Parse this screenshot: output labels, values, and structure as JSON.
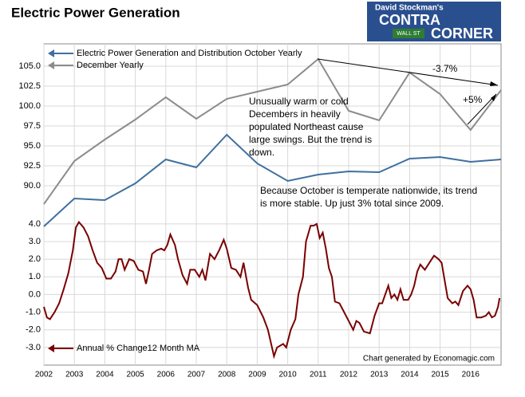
{
  "chart_data": {
    "type": "line",
    "title": "Electric Power Generation",
    "logo": [
      "David Stockman's",
      "CONTRA",
      "CORNER",
      "WALL ST"
    ],
    "xlim": [
      2002,
      2017
    ],
    "xticks": [
      2002,
      2003,
      2004,
      2005,
      2006,
      2007,
      2008,
      2009,
      2010,
      2011,
      2012,
      2013,
      2014,
      2015,
      2016
    ],
    "ylim": [
      67.5,
      107.8
    ],
    "yticks": [
      {
        "value": 90,
        "label": "90.0"
      },
      92.5,
      {
        "value": 95,
        "label": "95.0"
      },
      97.5,
      {
        "value": 100,
        "label": "100.0"
      },
      102.5,
      {
        "value": 105,
        "label": "105.0"
      }
    ],
    "y2lim": [
      -4,
      14.2
    ],
    "y2ticks": [
      {
        "value": -3,
        "label": "-3.0"
      },
      {
        "value": -2,
        "label": "-2.0"
      },
      {
        "value": -1,
        "label": "-1.0"
      },
      {
        "value": 0,
        "label": "0.0"
      },
      {
        "value": 1,
        "label": "1.0"
      },
      {
        "value": 2,
        "label": "2.0"
      },
      {
        "value": 3,
        "label": "3.0"
      },
      {
        "value": 4,
        "label": "4.0"
      }
    ],
    "grid": true,
    "series": [
      {
        "name": "Electric Power Generation and Distribution October Yearly",
        "color": "#3f6fa0",
        "x": [
          2002,
          2003,
          2004,
          2005,
          2006,
          2007,
          2008,
          2009,
          2010,
          2011,
          2012,
          2013,
          2014,
          2015,
          2016,
          2017
        ],
        "values": [
          84.9,
          88.4,
          88.2,
          90.3,
          93.3,
          92.3,
          96.4,
          92.8,
          90.6,
          91.4,
          91.8,
          91.7,
          93.4,
          93.6,
          93.0,
          93.3
        ]
      },
      {
        "name": "December Yearly",
        "color": "#8c8c8c",
        "x": [
          2002,
          2003,
          2004,
          2005,
          2006,
          2007,
          2008,
          2009,
          2010,
          2011,
          2012,
          2013,
          2014,
          2015,
          2016,
          2017
        ],
        "values": [
          87.7,
          93.1,
          95.8,
          98.3,
          101.1,
          98.4,
          100.9,
          101.8,
          102.7,
          105.9,
          99.4,
          98.2,
          104.2,
          101.5,
          97.0,
          102.0
        ]
      },
      {
        "name": "Annual % Change12 Month MA",
        "color": "#7a0000",
        "axis": "y2",
        "x": [
          2002.0,
          2002.1,
          2002.2,
          2002.35,
          2002.5,
          2002.65,
          2002.8,
          2002.95,
          2003.05,
          2003.15,
          2003.3,
          2003.45,
          2003.6,
          2003.75,
          2003.9,
          2004.05,
          2004.2,
          2004.35,
          2004.45,
          2004.55,
          2004.65,
          2004.8,
          2004.95,
          2005.1,
          2005.25,
          2005.35,
          2005.45,
          2005.55,
          2005.7,
          2005.85,
          2005.95,
          2006.05,
          2006.15,
          2006.3,
          2006.4,
          2006.55,
          2006.7,
          2006.8,
          2006.95,
          2007.1,
          2007.2,
          2007.3,
          2007.45,
          2007.6,
          2007.75,
          2007.9,
          2008.0,
          2008.15,
          2008.3,
          2008.45,
          2008.55,
          2008.7,
          2008.8,
          2009.0,
          2009.2,
          2009.35,
          2009.55,
          2009.65,
          2009.85,
          2009.95,
          2010.1,
          2010.25,
          2010.35,
          2010.5,
          2010.6,
          2010.75,
          2010.85,
          2010.95,
          2011.05,
          2011.15,
          2011.25,
          2011.35,
          2011.45,
          2011.55,
          2011.7,
          2011.85,
          2012.0,
          2012.15,
          2012.25,
          2012.35,
          2012.5,
          2012.7,
          2012.85,
          2013.0,
          2013.1,
          2013.2,
          2013.3,
          2013.4,
          2013.5,
          2013.6,
          2013.7,
          2013.8,
          2013.95,
          2014.05,
          2014.15,
          2014.25,
          2014.35,
          2014.5,
          2014.65,
          2014.8,
          2014.95,
          2015.05,
          2015.15,
          2015.25,
          2015.4,
          2015.5,
          2015.6,
          2015.75,
          2015.9,
          2016.0,
          2016.1,
          2016.2,
          2016.35,
          2016.5,
          2016.6,
          2016.7,
          2016.8,
          2016.9,
          2016.95
        ],
        "values": [
          -0.7,
          -1.3,
          -1.4,
          -1.0,
          -0.5,
          0.3,
          1.2,
          2.5,
          3.8,
          4.1,
          3.8,
          3.3,
          2.5,
          1.8,
          1.5,
          0.9,
          0.9,
          1.3,
          2.0,
          2.0,
          1.4,
          2.0,
          1.9,
          1.4,
          1.3,
          0.6,
          1.4,
          2.3,
          2.5,
          2.6,
          2.5,
          2.8,
          3.4,
          2.8,
          2.0,
          1.1,
          0.6,
          1.4,
          1.4,
          1.0,
          1.4,
          0.8,
          2.3,
          2.0,
          2.5,
          3.1,
          2.6,
          1.5,
          1.4,
          1.0,
          1.8,
          0.4,
          -0.3,
          -0.6,
          -1.3,
          -2.0,
          -3.5,
          -3.0,
          -2.8,
          -3.0,
          -2.0,
          -1.4,
          0.0,
          1.0,
          3.0,
          3.9,
          3.9,
          4.0,
          3.2,
          3.5,
          2.6,
          1.5,
          1.0,
          -0.4,
          -0.5,
          -1.0,
          -1.5,
          -2.0,
          -1.5,
          -1.6,
          -2.1,
          -2.2,
          -1.2,
          -0.5,
          -0.5,
          0.0,
          0.5,
          -0.2,
          0.0,
          -0.3,
          0.3,
          -0.3,
          -0.3,
          0.0,
          0.5,
          1.3,
          1.7,
          1.4,
          1.8,
          2.2,
          2.0,
          1.8,
          0.8,
          -0.2,
          -0.5,
          -0.4,
          -0.6,
          0.2,
          0.5,
          0.3,
          -0.3,
          -1.3,
          -1.3,
          -1.2,
          -1.0,
          -1.3,
          -1.2,
          -0.7,
          -0.2
        ]
      }
    ],
    "annotations": [
      "-3.7%",
      "+5%",
      "Unusually warm or cold",
      "Decembers in heavily",
      "populated Northeast cause",
      "large swings. But the trend is",
      "down.",
      "Because October is temperate nationwide, its trend",
      "is more stable. Up just 3% total since 2009.",
      "Chart generated by Economagic.com"
    ]
  }
}
